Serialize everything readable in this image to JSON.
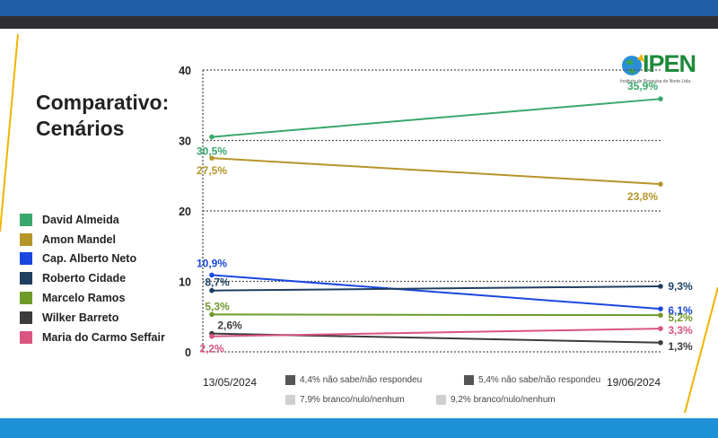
{
  "slide": {
    "title_line1": "Comparativo:",
    "title_line2": "Cenários"
  },
  "logo": {
    "name": "IPEN",
    "subtitle": "Instituto de Pesquisa do Norte Ltda."
  },
  "colors": {
    "band_top": "#1f5fa8",
    "band_bottom": "#1e90d6",
    "accent_line": "#f0b400"
  },
  "chart_data": {
    "type": "line",
    "title": "Comparativo: Cenários",
    "categories": [
      "13/05/2024",
      "19/06/2024"
    ],
    "ylim": [
      0,
      40
    ],
    "yticks": [
      0,
      10,
      20,
      30,
      40
    ],
    "grid": "dotted horizontal",
    "series": [
      {
        "name": "David Almeida",
        "color": "#3aa86b",
        "values": [
          30.5,
          35.9
        ],
        "labels": [
          "30,5%",
          "35,9%"
        ]
      },
      {
        "name": "Amon Mandel",
        "color": "#b5952a",
        "values": [
          27.5,
          23.8
        ],
        "labels": [
          "27,5%",
          "23,8%"
        ]
      },
      {
        "name": "Cap. Alberto Neto",
        "color": "#1a47e0",
        "values": [
          10.9,
          6.1
        ],
        "labels": [
          "10,9%",
          "6,1%"
        ]
      },
      {
        "name": "Roberto Cidade",
        "color": "#1f3f5f",
        "values": [
          8.7,
          9.3
        ],
        "labels": [
          "8,7%",
          "9,3%"
        ]
      },
      {
        "name": "Marcelo Ramos",
        "color": "#6f9a2a",
        "values": [
          5.3,
          5.2
        ],
        "labels": [
          "5,3%",
          "5,2%"
        ]
      },
      {
        "name": "Wilker Barreto",
        "color": "#3c3c3c",
        "values": [
          2.6,
          1.3
        ],
        "labels": [
          "2,6%",
          "1,3%"
        ]
      },
      {
        "name": "Maria do Carmo Seffair",
        "color": "#d9557f",
        "values": [
          2.2,
          3.3
        ],
        "labels": [
          "2,2%",
          "3,3%"
        ]
      }
    ],
    "nonresponse": [
      {
        "text": "4,4% não sabe/não respondeu",
        "color": "#555555"
      },
      {
        "text": "5,4% não sabe/não respondeu",
        "color": "#555555"
      },
      {
        "text": "7,9% branco/nulo/nenhum",
        "color": "#cfcfcf"
      },
      {
        "text": "9,2% branco/nulo/nenhum",
        "color": "#cfcfcf"
      }
    ]
  }
}
